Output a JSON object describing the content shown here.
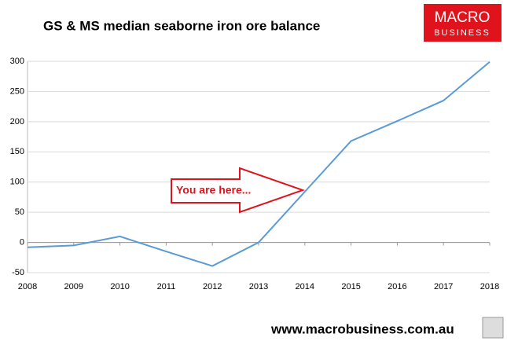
{
  "chart_data": {
    "type": "line",
    "title": "GS & MS median seaborne iron ore balance",
    "logo": {
      "line1": "MACRO",
      "line2": "BUSINESS"
    },
    "annotation": "You are here...",
    "footer": "www.macrobusiness.com.au",
    "x": [
      2008,
      2009,
      2010,
      2011,
      2012,
      2013,
      2014,
      2015,
      2016,
      2017,
      2018
    ],
    "series": [
      {
        "name": "Balance",
        "color": "#5b9bd5",
        "values": [
          -8,
          -5,
          10,
          -15,
          -39,
          0,
          84,
          168,
          201,
          235,
          299
        ]
      }
    ],
    "xlim": [
      2008,
      2018
    ],
    "xticks": [
      2008,
      2009,
      2010,
      2011,
      2012,
      2013,
      2014,
      2015,
      2016,
      2017,
      2018
    ],
    "ylim": [
      -50,
      300
    ],
    "yticks": [
      -50,
      0,
      50,
      100,
      150,
      200,
      250,
      300
    ],
    "grid": true
  }
}
